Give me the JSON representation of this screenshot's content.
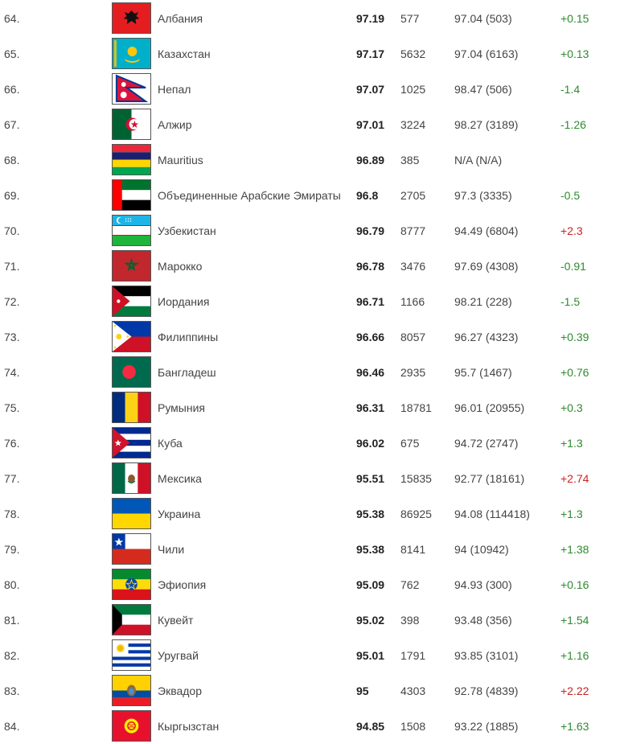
{
  "rows": [
    {
      "rank": "64.",
      "country": "Албания",
      "flag": "albania-flag-icon",
      "score": "97.19",
      "count": "577",
      "prev": "97.04 (503)",
      "delta": "+0.15",
      "delta_color": "green"
    },
    {
      "rank": "65.",
      "country": "Казахстан",
      "flag": "kazakhstan-flag-icon",
      "score": "97.17",
      "count": "5632",
      "prev": "97.04 (6163)",
      "delta": "+0.13",
      "delta_color": "green"
    },
    {
      "rank": "66.",
      "country": "Непал",
      "flag": "nepal-flag-icon",
      "score": "97.07",
      "count": "1025",
      "prev": "98.47 (506)",
      "delta": "-1.4",
      "delta_color": "green"
    },
    {
      "rank": "67.",
      "country": "Алжир",
      "flag": "algeria-flag-icon",
      "score": "97.01",
      "count": "3224",
      "prev": "98.27 (3189)",
      "delta": "-1.26",
      "delta_color": "green"
    },
    {
      "rank": "68.",
      "country": "Mauritius",
      "flag": "mauritius-flag-icon",
      "score": "96.89",
      "count": "385",
      "prev": "N/A (N/A)",
      "delta": "",
      "delta_color": "green"
    },
    {
      "rank": "69.",
      "country": "Объединенные Арабские Эмираты",
      "flag": "uae-flag-icon",
      "score": "96.8",
      "count": "2705",
      "prev": "97.3 (3335)",
      "delta": "-0.5",
      "delta_color": "green"
    },
    {
      "rank": "70.",
      "country": "Узбекистан",
      "flag": "uzbekistan-flag-icon",
      "score": "96.79",
      "count": "8777",
      "prev": "94.49 (6804)",
      "delta": "+2.3",
      "delta_color": "red"
    },
    {
      "rank": "71.",
      "country": "Марокко",
      "flag": "morocco-flag-icon",
      "score": "96.78",
      "count": "3476",
      "prev": "97.69 (4308)",
      "delta": "-0.91",
      "delta_color": "green"
    },
    {
      "rank": "72.",
      "country": "Иордания",
      "flag": "jordan-flag-icon",
      "score": "96.71",
      "count": "1166",
      "prev": "98.21 (228)",
      "delta": "-1.5",
      "delta_color": "green"
    },
    {
      "rank": "73.",
      "country": "Филиппины",
      "flag": "philippines-flag-icon",
      "score": "96.66",
      "count": "8057",
      "prev": "96.27 (4323)",
      "delta": "+0.39",
      "delta_color": "green"
    },
    {
      "rank": "74.",
      "country": "Бангладеш",
      "flag": "bangladesh-flag-icon",
      "score": "96.46",
      "count": "2935",
      "prev": "95.7 (1467)",
      "delta": "+0.76",
      "delta_color": "green"
    },
    {
      "rank": "75.",
      "country": "Румыния",
      "flag": "romania-flag-icon",
      "score": "96.31",
      "count": "18781",
      "prev": "96.01 (20955)",
      "delta": "+0.3",
      "delta_color": "green"
    },
    {
      "rank": "76.",
      "country": "Куба",
      "flag": "cuba-flag-icon",
      "score": "96.02",
      "count": "675",
      "prev": "94.72 (2747)",
      "delta": "+1.3",
      "delta_color": "green"
    },
    {
      "rank": "77.",
      "country": "Мексика",
      "flag": "mexico-flag-icon",
      "score": "95.51",
      "count": "15835",
      "prev": "92.77 (18161)",
      "delta": "+2.74",
      "delta_color": "red"
    },
    {
      "rank": "78.",
      "country": "Украина",
      "flag": "ukraine-flag-icon",
      "score": "95.38",
      "count": "86925",
      "prev": "94.08 (114418)",
      "delta": "+1.3",
      "delta_color": "green"
    },
    {
      "rank": "79.",
      "country": "Чили",
      "flag": "chile-flag-icon",
      "score": "95.38",
      "count": "8141",
      "prev": "94 (10942)",
      "delta": "+1.38",
      "delta_color": "green"
    },
    {
      "rank": "80.",
      "country": "Эфиопия",
      "flag": "ethiopia-flag-icon",
      "score": "95.09",
      "count": "762",
      "prev": "94.93 (300)",
      "delta": "+0.16",
      "delta_color": "green"
    },
    {
      "rank": "81.",
      "country": "Кувейт",
      "flag": "kuwait-flag-icon",
      "score": "95.02",
      "count": "398",
      "prev": "93.48 (356)",
      "delta": "+1.54",
      "delta_color": "green"
    },
    {
      "rank": "82.",
      "country": "Уругвай",
      "flag": "uruguay-flag-icon",
      "score": "95.01",
      "count": "1791",
      "prev": "93.85 (3101)",
      "delta": "+1.16",
      "delta_color": "green"
    },
    {
      "rank": "83.",
      "country": "Эквадор",
      "flag": "ecuador-flag-icon",
      "score": "95",
      "count": "4303",
      "prev": "92.78 (4839)",
      "delta": "+2.22",
      "delta_color": "red"
    },
    {
      "rank": "84.",
      "country": "Кыргызстан",
      "flag": "kyrgyzstan-flag-icon",
      "score": "94.85",
      "count": "1508",
      "prev": "93.22 (1885)",
      "delta": "+1.63",
      "delta_color": "green"
    }
  ]
}
